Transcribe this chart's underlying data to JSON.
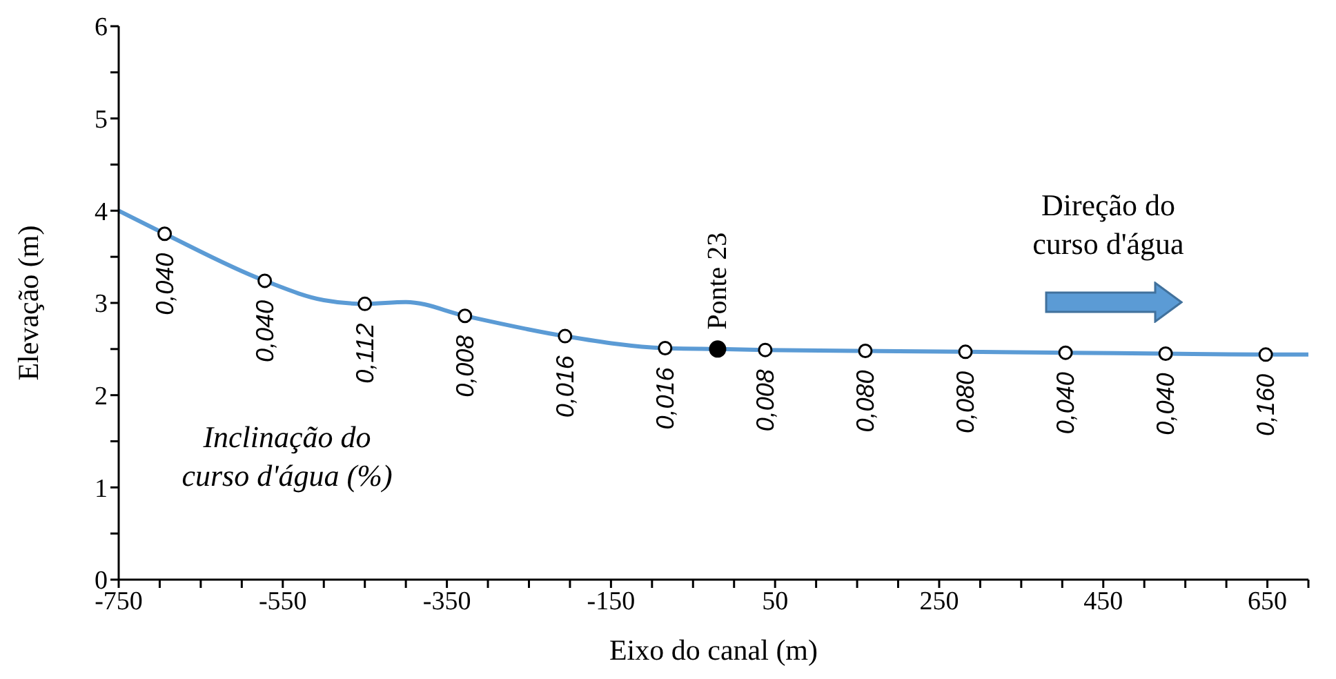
{
  "chart_data": {
    "type": "line",
    "xlabel": "Eixo do canal (m)",
    "ylabel": "Elevação (m)",
    "xlim": [
      -750,
      700
    ],
    "xticks": [
      -750,
      {
        "value": -700,
        "label": null
      },
      {
        "value": -650,
        "label": null
      },
      {
        "value": -600,
        "label": null
      },
      -550,
      {
        "value": -500,
        "label": null
      },
      {
        "value": -450,
        "label": null
      },
      {
        "value": -400,
        "label": null
      },
      -350,
      {
        "value": -300,
        "label": null
      },
      {
        "value": -250,
        "label": null
      },
      {
        "value": -200,
        "label": null
      },
      -150,
      {
        "value": -100,
        "label": null
      },
      {
        "value": -50,
        "label": null
      },
      {
        "value": 0,
        "label": null
      },
      50,
      {
        "value": 100,
        "label": null
      },
      {
        "value": 150,
        "label": null
      },
      {
        "value": 200,
        "label": null
      },
      250,
      {
        "value": 300,
        "label": null
      },
      {
        "value": 350,
        "label": null
      },
      {
        "value": 400,
        "label": null
      },
      450,
      {
        "value": 500,
        "label": null
      },
      {
        "value": 550,
        "label": null
      },
      {
        "value": 600,
        "label": null
      },
      650,
      {
        "value": 700,
        "label": null
      }
    ],
    "ylim": [
      0,
      6
    ],
    "yticks": [
      0,
      {
        "value": 0.5,
        "label": null
      },
      1,
      {
        "value": 1.5,
        "label": null
      },
      2,
      {
        "value": 2.5,
        "label": null
      },
      3,
      {
        "value": 3.5,
        "label": null
      },
      4,
      {
        "value": 4.5,
        "label": null
      },
      5,
      {
        "value": 5.5,
        "label": null
      },
      6
    ],
    "grid": false,
    "legend": false,
    "series": [
      {
        "color": "#5b9bd5",
        "marker": "none",
        "x": [
          -750,
          -694,
          -572,
          -500,
          -450,
          -400,
          -328,
          -206,
          -84,
          -20,
          38,
          160,
          282,
          404,
          526,
          648,
          700
        ],
        "values": [
          4.0,
          3.75,
          3.24,
          3.03,
          2.99,
          3.01,
          2.86,
          2.64,
          2.51,
          2.5,
          2.49,
          2.48,
          2.47,
          2.46,
          2.45,
          2.44,
          2.44
        ]
      },
      {
        "type": "scatter",
        "color": "#ffffff",
        "marker": "circle",
        "x": [
          -694,
          -572,
          -450,
          -328,
          -206,
          -84,
          38,
          160,
          282,
          404,
          526,
          648
        ],
        "values": [
          3.75,
          3.24,
          2.99,
          2.86,
          2.64,
          2.51,
          2.49,
          2.48,
          2.47,
          2.46,
          2.45,
          2.44
        ]
      },
      {
        "type": "scatter",
        "color": "#000000",
        "marker": "circle",
        "x": [
          -20
        ],
        "values": [
          2.5
        ]
      }
    ],
    "annotations": [
      {
        "text": "Ponte 23",
        "x": -20,
        "y": 2.5
      },
      {
        "text": "0,040",
        "x": -694,
        "y": 3.75
      },
      {
        "text": "0,040",
        "x": -572,
        "y": 3.24
      },
      {
        "text": "0,112",
        "x": -450,
        "y": 2.99
      },
      {
        "text": "0,008",
        "x": -328,
        "y": 2.86
      },
      {
        "text": "0,016",
        "x": -206,
        "y": 2.64
      },
      {
        "text": "0,016",
        "x": -84,
        "y": 2.51
      },
      {
        "text": "0,008",
        "x": 38,
        "y": 2.49
      },
      {
        "text": "0,080",
        "x": 160,
        "y": 2.48
      },
      {
        "text": "0,080",
        "x": 282,
        "y": 2.47
      },
      {
        "text": "0,040",
        "x": 404,
        "y": 2.46
      },
      {
        "text": "0,040",
        "x": 526,
        "y": 2.45
      },
      {
        "text": "0,160",
        "x": 648,
        "y": 2.44
      },
      "Inclinação do curso d'água (%)",
      "Direção do curso d'água"
    ]
  }
}
